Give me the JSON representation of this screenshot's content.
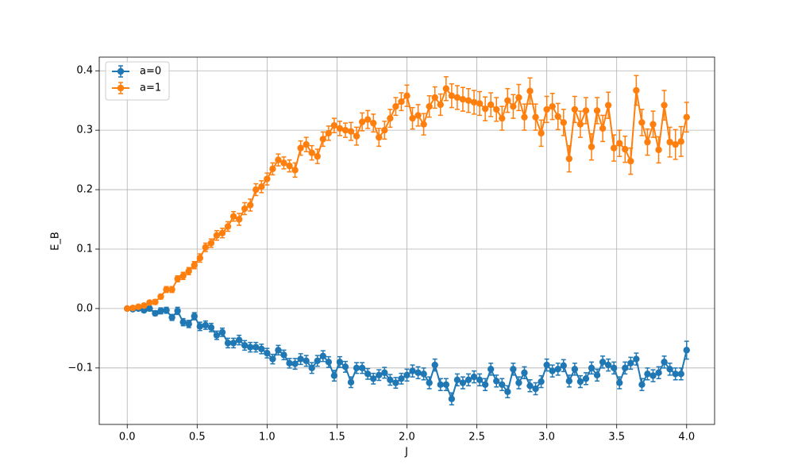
{
  "chart_data": {
    "type": "errorbar_line",
    "xlabel": "J",
    "ylabel": "E_B",
    "x": [
      0,
      0.04,
      0.08,
      0.12,
      0.16,
      0.2,
      0.24,
      0.28,
      0.32,
      0.36,
      0.4,
      0.44,
      0.48,
      0.52,
      0.56,
      0.6,
      0.64,
      0.68,
      0.72,
      0.76,
      0.8,
      0.84,
      0.88,
      0.92,
      0.96,
      1.0,
      1.04,
      1.08,
      1.12,
      1.16,
      1.2,
      1.24,
      1.28,
      1.32,
      1.36,
      1.4,
      1.44,
      1.48,
      1.52,
      1.56,
      1.6,
      1.64,
      1.68,
      1.72,
      1.76,
      1.8,
      1.84,
      1.88,
      1.92,
      1.96,
      2.0,
      2.04,
      2.08,
      2.12,
      2.16,
      2.2,
      2.24,
      2.28,
      2.32,
      2.36,
      2.4,
      2.44,
      2.48,
      2.52,
      2.56,
      2.6,
      2.64,
      2.68,
      2.72,
      2.76,
      2.8,
      2.84,
      2.88,
      2.92,
      2.96,
      3.0,
      3.04,
      3.08,
      3.12,
      3.16,
      3.2,
      3.24,
      3.28,
      3.32,
      3.36,
      3.4,
      3.44,
      3.48,
      3.52,
      3.56,
      3.6,
      3.64,
      3.68,
      3.72,
      3.76,
      3.8,
      3.84,
      3.88,
      3.92,
      3.96,
      4.0
    ],
    "series": [
      {
        "name": "a=0",
        "color": "#1f77b4",
        "values": [
          0,
          -0.001,
          0,
          -0.003,
          0,
          -0.008,
          -0.004,
          -0.003,
          -0.015,
          -0.004,
          -0.023,
          -0.026,
          -0.013,
          -0.03,
          -0.028,
          -0.032,
          -0.045,
          -0.04,
          -0.058,
          -0.058,
          -0.053,
          -0.062,
          -0.065,
          -0.065,
          -0.068,
          -0.075,
          -0.085,
          -0.07,
          -0.078,
          -0.092,
          -0.093,
          -0.085,
          -0.088,
          -0.1,
          -0.088,
          -0.08,
          -0.09,
          -0.113,
          -0.09,
          -0.098,
          -0.124,
          -0.1,
          -0.1,
          -0.11,
          -0.118,
          -0.112,
          -0.108,
          -0.12,
          -0.125,
          -0.118,
          -0.112,
          -0.105,
          -0.108,
          -0.11,
          -0.125,
          -0.095,
          -0.128,
          -0.128,
          -0.152,
          -0.12,
          -0.125,
          -0.12,
          -0.115,
          -0.12,
          -0.128,
          -0.102,
          -0.122,
          -0.128,
          -0.14,
          -0.102,
          -0.125,
          -0.108,
          -0.13,
          -0.135,
          -0.123,
          -0.095,
          -0.105,
          -0.102,
          -0.096,
          -0.122,
          -0.102,
          -0.123,
          -0.118,
          -0.1,
          -0.112,
          -0.09,
          -0.095,
          -0.1,
          -0.125,
          -0.1,
          -0.092,
          -0.085,
          -0.128,
          -0.11,
          -0.113,
          -0.108,
          -0.09,
          -0.102,
          -0.11,
          -0.11,
          -0.07
        ],
        "errors": [
          0,
          0.002,
          0.003,
          0.003,
          0.004,
          0.004,
          0.005,
          0.005,
          0.005,
          0.006,
          0.006,
          0.006,
          0.006,
          0.007,
          0.007,
          0.007,
          0.007,
          0.007,
          0.008,
          0.008,
          0.008,
          0.008,
          0.008,
          0.008,
          0.008,
          0.008,
          0.008,
          0.008,
          0.008,
          0.008,
          0.009,
          0.009,
          0.009,
          0.009,
          0.009,
          0.009,
          0.009,
          0.009,
          0.009,
          0.009,
          0.009,
          0.009,
          0.009,
          0.009,
          0.009,
          0.009,
          0.009,
          0.009,
          0.009,
          0.009,
          0.01,
          0.01,
          0.01,
          0.01,
          0.01,
          0.01,
          0.01,
          0.01,
          0.01,
          0.01,
          0.01,
          0.01,
          0.01,
          0.01,
          0.01,
          0.01,
          0.01,
          0.01,
          0.01,
          0.01,
          0.01,
          0.01,
          0.01,
          0.01,
          0.01,
          0.01,
          0.01,
          0.01,
          0.01,
          0.01,
          0.01,
          0.01,
          0.01,
          0.01,
          0.01,
          0.01,
          0.01,
          0.01,
          0.01,
          0.01,
          0.01,
          0.01,
          0.01,
          0.01,
          0.01,
          0.01,
          0.01,
          0.01,
          0.01,
          0.01,
          0.015
        ]
      },
      {
        "name": "a=1",
        "color": "#ff7f0e",
        "values": [
          0,
          0.001,
          0.003,
          0.005,
          0.01,
          0.011,
          0.02,
          0.032,
          0.032,
          0.05,
          0.055,
          0.063,
          0.073,
          0.085,
          0.103,
          0.11,
          0.123,
          0.127,
          0.138,
          0.155,
          0.15,
          0.168,
          0.174,
          0.2,
          0.205,
          0.218,
          0.235,
          0.25,
          0.245,
          0.24,
          0.233,
          0.27,
          0.276,
          0.262,
          0.256,
          0.285,
          0.295,
          0.308,
          0.303,
          0.3,
          0.298,
          0.29,
          0.314,
          0.318,
          0.312,
          0.288,
          0.3,
          0.32,
          0.34,
          0.348,
          0.358,
          0.32,
          0.325,
          0.31,
          0.34,
          0.355,
          0.343,
          0.37,
          0.358,
          0.355,
          0.352,
          0.35,
          0.347,
          0.345,
          0.336,
          0.343,
          0.335,
          0.32,
          0.35,
          0.34,
          0.355,
          0.322,
          0.366,
          0.322,
          0.295,
          0.335,
          0.34,
          0.323,
          0.313,
          0.252,
          0.335,
          0.31,
          0.333,
          0.272,
          0.333,
          0.303,
          0.342,
          0.27,
          0.278,
          0.268,
          0.248,
          0.367,
          0.313,
          0.28,
          0.31,
          0.267,
          0.342,
          0.28,
          0.276,
          0.281,
          0.322
        ],
        "errors": [
          0,
          0.002,
          0.002,
          0.003,
          0.003,
          0.004,
          0.004,
          0.005,
          0.005,
          0.005,
          0.006,
          0.006,
          0.006,
          0.007,
          0.007,
          0.007,
          0.008,
          0.008,
          0.008,
          0.008,
          0.01,
          0.01,
          0.01,
          0.01,
          0.01,
          0.01,
          0.01,
          0.01,
          0.01,
          0.01,
          0.012,
          0.012,
          0.012,
          0.012,
          0.012,
          0.012,
          0.012,
          0.012,
          0.012,
          0.012,
          0.015,
          0.015,
          0.015,
          0.015,
          0.015,
          0.015,
          0.015,
          0.015,
          0.015,
          0.015,
          0.018,
          0.018,
          0.018,
          0.018,
          0.018,
          0.018,
          0.018,
          0.02,
          0.02,
          0.02,
          0.02,
          0.02,
          0.02,
          0.02,
          0.02,
          0.02,
          0.02,
          0.02,
          0.02,
          0.02,
          0.022,
          0.022,
          0.022,
          0.022,
          0.022,
          0.022,
          0.022,
          0.022,
          0.022,
          0.022,
          0.022,
          0.022,
          0.022,
          0.022,
          0.022,
          0.022,
          0.022,
          0.022,
          0.022,
          0.022,
          0.022,
          0.025,
          0.022,
          0.022,
          0.022,
          0.022,
          0.025,
          0.025,
          0.025,
          0.025,
          0.025
        ]
      }
    ],
    "xlim": [
      -0.2,
      4.2
    ],
    "ylim": [
      -0.195,
      0.423
    ],
    "xticks": [
      {
        "value": 0,
        "label": "0.0"
      },
      0.5,
      {
        "value": 1,
        "label": "1.0"
      },
      1.5,
      {
        "value": 2,
        "label": "2.0"
      },
      2.5,
      {
        "value": 3,
        "label": "3.0"
      },
      3.5,
      {
        "value": 4,
        "label": "4.0"
      }
    ],
    "yticks": [
      {
        "value": -0.1,
        "label": "−0.1"
      },
      {
        "value": 0,
        "label": "0.0"
      },
      0.1,
      0.2,
      0.3,
      0.4
    ],
    "grid": true,
    "legend": "upper left"
  }
}
